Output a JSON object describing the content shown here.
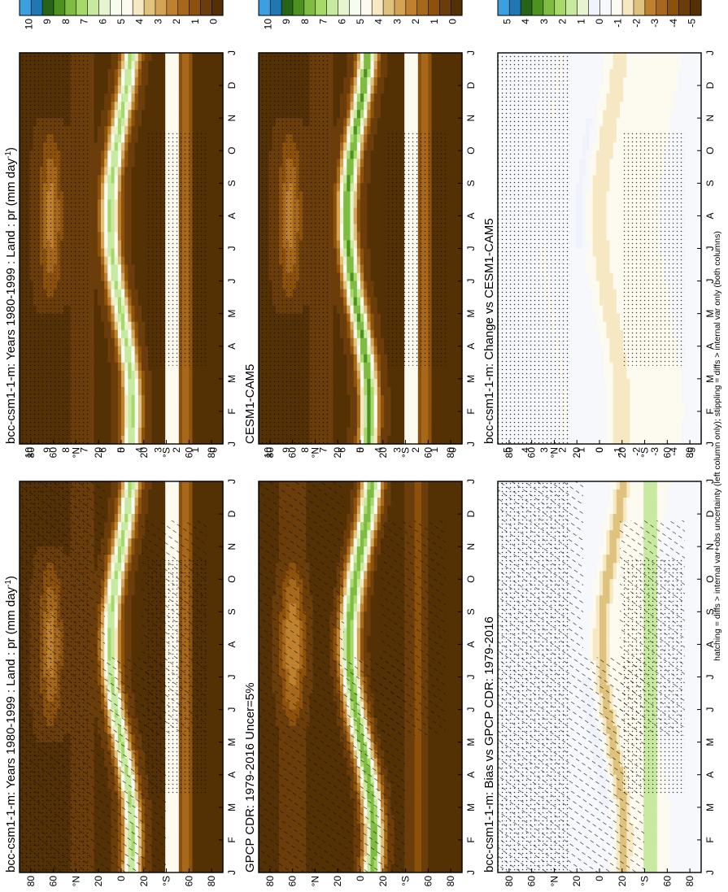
{
  "chart_data": {
    "type": "heatmap",
    "layout": "6 latitude-month contour panels, whole figure rotated 90 degrees counter-clockwise",
    "x_ticks": [
      "J",
      "F",
      "M",
      "A",
      "M",
      "J",
      "J",
      "A",
      "S",
      "O",
      "N",
      "D",
      "J"
    ],
    "y_ticks": [
      "80",
      "60",
      "°N",
      "20",
      "0",
      "20",
      "°S",
      "60",
      "80"
    ],
    "y_range": [
      -90,
      90
    ],
    "colorbars": {
      "absolute": {
        "labels": [
          "0",
          "1",
          "2",
          "3",
          "4",
          "5",
          "6",
          "7",
          "8",
          "9",
          "10"
        ],
        "range": [
          0,
          10
        ]
      },
      "difference": {
        "labels": [
          "-5",
          "-4",
          "-3",
          "-2",
          "-1",
          "0",
          "1",
          "2",
          "3",
          "4",
          "5"
        ],
        "range": [
          -5,
          5
        ]
      }
    },
    "panels": [
      {
        "id": "model-left",
        "title": "bcc-csm1-1-m: Years 1980-1999 : Land : pr (mm day",
        "title_sup": "-1",
        "title_end": ")",
        "colorbar": "absolute",
        "overlay": "hatching+stippling"
      },
      {
        "id": "model-right",
        "title": "bcc-csm1-1-m: Years 1980-1999 : Land : pr (mm day",
        "title_sup": "-1",
        "title_end": ")",
        "colorbar": "absolute",
        "overlay": "stippling"
      },
      {
        "id": "obs",
        "title": "GPCP CDR: 1979-2016 Uncer=5%",
        "colorbar": "absolute",
        "overlay": "hatching"
      },
      {
        "id": "ref-model",
        "title": "CESM1-CAM5",
        "colorbar": "absolute",
        "overlay": "stippling"
      },
      {
        "id": "bias",
        "title": "bcc-csm1-1-m: Bias vs GPCP CDR: 1979-2016",
        "colorbar": "difference",
        "overlay": "hatching+stippling"
      },
      {
        "id": "change",
        "title": "bcc-csm1-1-m: Change vs CESM1-CAM5",
        "colorbar": "difference",
        "overlay": "stippling"
      }
    ],
    "footnote": "hatching = diffs > internal var+obs uncertainty (left column only); stippling = diffs > internal var only (both columns)"
  },
  "colors": {
    "absolute_palette": [
      "#543005",
      "#6b3d0a",
      "#8c510a",
      "#a6681a",
      "#bf812d",
      "#d4a356",
      "#dfc27d",
      "#f6e8c3",
      "#fdfaef",
      "#f7fcf0",
      "#e6f5d0",
      "#c7e9a0",
      "#a6d96a",
      "#7fbc41",
      "#4d9221",
      "#276419",
      "#1f78b4",
      "#3b9fe0"
    ],
    "difference_palette": [
      "#543005",
      "#6b3d0a",
      "#8c510a",
      "#a6681a",
      "#bf812d",
      "#dfc27d",
      "#f6e8c3",
      "#fdfaef",
      "#f7f8fc",
      "#f0f3fb",
      "#e6f5d0",
      "#c7e9a0",
      "#a6d96a",
      "#7fbc41",
      "#4d9221",
      "#276419",
      "#1f78b4",
      "#3b9fe0"
    ]
  }
}
